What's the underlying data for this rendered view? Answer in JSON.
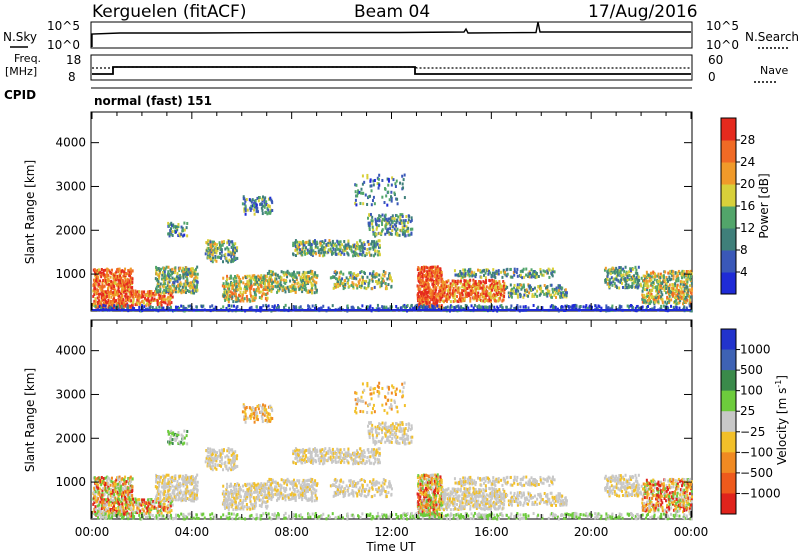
{
  "header": {
    "station": "Kerguelen (fitACF)",
    "beam": "Beam 04",
    "date": "17/Aug/2016"
  },
  "strip_labels": {
    "nsky": "N.Sky",
    "nsearch": "N.Search",
    "freq_top": "Freq.",
    "freq_unit": "[MHz]",
    "nave": "Nave",
    "cpid": "CPID"
  },
  "strip_ticks": {
    "noise_left_top": "10^5",
    "noise_left_bottom": "10^0",
    "noise_right_top": "10^5",
    "noise_right_bottom": "10^0",
    "freq_left_top": "18",
    "freq_left_bottom": "8",
    "nave_right_top": "60",
    "nave_right_bottom": "0"
  },
  "cpid_text": "normal (fast) 151",
  "chart_data": [
    {
      "type": "heatmap",
      "panel": "power",
      "ylabel": "Slant Range [km]",
      "xlabel": "Time UT",
      "x_ticks": [
        "00:00",
        "04:00",
        "08:00",
        "12:00",
        "16:00",
        "20:00",
        "00:00"
      ],
      "x_range_hours": [
        0,
        24
      ],
      "y_ticks": [
        "1000",
        "2000",
        "3000",
        "4000"
      ],
      "y_ticks_values": [
        1000,
        2000,
        3000,
        4000
      ],
      "ylim": [
        180,
        4700
      ],
      "colorbar": {
        "label": "Power [dB]",
        "ticks": [
          "4",
          "8",
          "12",
          "16",
          "20",
          "24",
          "28"
        ],
        "colors": [
          "#1f2bd6",
          "#3a58b8",
          "#3f7f7a",
          "#52a56a",
          "#d8d03a",
          "#f09a2a",
          "#f06a25",
          "#e52a1e"
        ]
      }
    },
    {
      "type": "heatmap",
      "panel": "velocity",
      "ylabel": "Slant Range [km]",
      "xlabel": "Time UT",
      "x_ticks": [
        "00:00",
        "04:00",
        "08:00",
        "12:00",
        "16:00",
        "20:00",
        "00:00"
      ],
      "y_ticks": [
        "1000",
        "2000",
        "3000",
        "4000"
      ],
      "y_ticks_values": [
        1000,
        2000,
        3000,
        4000
      ],
      "ylim": [
        180,
        4700
      ],
      "colorbar": {
        "label": "Velocity [m s",
        "label_superscript": "-1",
        "label_close": "]",
        "ticks": [
          "1000",
          "500",
          "100",
          "25",
          "−25",
          "−100",
          "−500",
          "−1000"
        ],
        "colors": [
          "#2233cc",
          "#3e62b4",
          "#3a8a4a",
          "#6dcb3c",
          "#c8c8c8",
          "#f2c02a",
          "#f08a22",
          "#ee5a1c",
          "#e0231c"
        ]
      }
    }
  ]
}
